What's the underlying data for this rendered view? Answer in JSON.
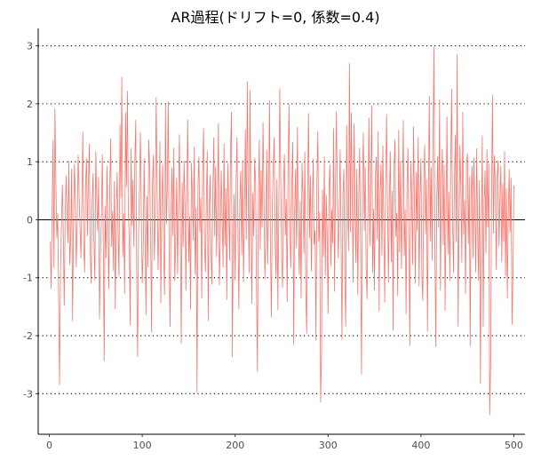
{
  "chart_data": {
    "type": "line",
    "title": "AR過程(ドリフト=0, 係数=0.4)",
    "xlabel": "",
    "ylabel": "",
    "xlim": [
      -12,
      512
    ],
    "ylim": [
      -3.7,
      3.3
    ],
    "x_ticks": [
      0,
      100,
      200,
      300,
      400,
      500
    ],
    "y_ticks": [
      -3,
      -2,
      -1,
      0,
      1,
      2,
      3
    ],
    "grid": "horizontal dotted at y ticks",
    "zero_line": true,
    "line_color": "#F8766D",
    "n_points": 500,
    "y_series": [
      -0.38,
      -1.19,
      0.2,
      1.37,
      -0.83,
      1.92,
      0.7,
      -0.31,
      0.11,
      -1.34,
      -2.85,
      -0.88,
      -0.12,
      0.61,
      -0.2,
      -1.48,
      -0.02,
      0.76,
      0.14,
      -0.4,
      1.02,
      -0.78,
      -0.33,
      0.88,
      -1.75,
      -0.1,
      0.96,
      0.35,
      -0.82,
      -0.03,
      1.12,
      0.47,
      -0.14,
      -0.66,
      0.31,
      1.52,
      -0.4,
      -0.91,
      0.59,
      1.06,
      -0.28,
      0.62,
      1.31,
      -0.52,
      -1.1,
      0.27,
      0.8,
      -0.36,
      -1.05,
      1.18,
      0.34,
      -0.2,
      0.74,
      -1.71,
      -0.59,
      -0.01,
      1.13,
      -0.31,
      -2.44,
      0.23,
      -0.66,
      0.93,
      -0.12,
      -1.2,
      0.51,
      1.4,
      -0.47,
      0.15,
      -0.88,
      0.67,
      -1.54,
      0.04,
      0.82,
      -0.25,
      -0.98,
      1.64,
      0.38,
      2.47,
      -0.64,
      0.11,
      -1.28,
      1.85,
      0.57,
      2.22,
      0.16,
      -0.33,
      -1.82,
      1.23,
      -0.1,
      0.69,
      -0.47,
      0.96,
      1.72,
      -0.88,
      -2.36,
      -0.24,
      0.52,
      1.51,
      0.08,
      -1.09,
      -0.54,
      1.06,
      -0.2,
      -1.65,
      0.41,
      -0.82,
      1.38,
      0.9,
      -0.32,
      -1.94,
      0.63,
      1.12,
      -0.7,
      0.05,
      2.11,
      0.48,
      -0.87,
      -0.12,
      1.35,
      -1.44,
      0.26,
      0.96,
      -0.5,
      -1.3,
      1.99,
      -0.08,
      0.57,
      2.04,
      -0.63,
      -1.85,
      0.17,
      0.9,
      -0.28,
      1.24,
      -1.06,
      -0.39,
      0.72,
      -0.94,
      0.35,
      1.47,
      -0.11,
      -2.14,
      0.64,
      -0.47,
      1.02,
      0.29,
      -1.22,
      0.52,
      1.73,
      -0.73,
      0.06,
      -1.55,
      0.98,
      0.43,
      -0.36,
      1.26,
      -0.95,
      0.21,
      -2.98,
      0.62,
      1.09,
      -0.21,
      0.38,
      -1.36,
      0.84,
      1.58,
      -0.44,
      -0.9,
      0.31,
      1.19,
      -1.74,
      0.14,
      0.77,
      -0.57,
      -1.12,
      0.49,
      1.42,
      -0.28,
      0.92,
      -0.64,
      0.23,
      1.67,
      -1.13,
      -0.36,
      0.85,
      0.12,
      -0.82,
      1.31,
      -0.45,
      0.54,
      -1.38,
      0.98,
      0.26,
      -0.7,
      1.16,
      1.86,
      -2.37,
      -0.29,
      0.44,
      -1.05,
      0.63,
      1.42,
      -0.16,
      -1.54,
      0.3,
      0.84,
      -0.61,
      1.03,
      -1.08,
      0.18,
      1.56,
      -0.34,
      2.39,
      0.57,
      -0.92,
      2.23,
      0.11,
      -1.45,
      0.46,
      -0.28,
      1.07,
      0.66,
      -1.19,
      -2.62,
      0.28,
      1.38,
      -0.52,
      0.85,
      -0.14,
      1.68,
      0.43,
      -1.03,
      -0.3,
      1.21,
      -0.76,
      0.35,
      2.06,
      -0.48,
      -1.68,
      0.24,
      0.92,
      1.43,
      -0.37,
      -0.98,
      0.7,
      -1.56,
      0.2,
      2.27,
      0.81,
      -0.64,
      -1.17,
      0.54,
      1.13,
      -0.27,
      0.36,
      -1.42,
      0.95,
      1.99,
      -0.21,
      -0.83,
      0.61,
      1.34,
      -2.16,
      0.1,
      0.88,
      -0.49,
      1.6,
      -0.15,
      -0.95,
      0.33,
      -1.36,
      0.98,
      0.42,
      -0.58,
      1.17,
      -1.21,
      -1.96,
      0.54,
      1.84,
      -0.32,
      0.76,
      -0.89,
      0.29,
      1.05,
      -0.43,
      -0.18,
      -2.08,
      0.68,
      1.52,
      -0.38,
      0.14,
      -3.15,
      -2.31,
      0.52,
      -0.64,
      1.09,
      -0.97,
      0.43,
      -0.2,
      -1.62,
      0.56,
      0.95,
      -0.8,
      0.18,
      -0.41,
      1.58,
      -1.24,
      0.69,
      1.87,
      0.32,
      -0.67,
      0.11,
      1.21,
      -0.38,
      -2.07,
      0.45,
      0.87,
      -0.96,
      -1.84,
      1.63,
      0.27,
      -0.54,
      2.7,
      -0.22,
      1.85,
      0.5,
      -1.08,
      1.66,
      0.14,
      -0.74,
      0.88,
      -1.3,
      0.36,
      1.24,
      -0.51,
      -2.67,
      0.63,
      1.51,
      -0.19,
      0.92,
      -0.83,
      -1.37,
      0.28,
      1.76,
      -0.45,
      0.67,
      1.97,
      -0.92,
      0.19,
      -1.22,
      0.77,
      1.09,
      -0.34,
      1.53,
      -1.58,
      0.42,
      0.96,
      -0.62,
      1.28,
      -0.08,
      -1.43,
      0.57,
      1.82,
      0.27,
      -1.08,
      0.36,
      1.18,
      -0.73,
      0.5,
      -1.91,
      0.84,
      1.38,
      -0.29,
      0.12,
      -1.32,
      1.55,
      -0.56,
      1.01,
      -0.85,
      0.31,
      1.72,
      -0.63,
      0.18,
      -1.63,
      0.6,
      1.24,
      -0.33,
      -2.17,
      0.98,
      0.45,
      -0.78,
      1.61,
      0.25,
      -1.1,
      0.82,
      -0.19,
      1.43,
      -1.15,
      0.39,
      1.06,
      -0.95,
      -1.4,
      0.66,
      1.29,
      -0.25,
      0.71,
      -1.93,
      0.41,
      2.14,
      -0.37,
      0.9,
      -0.71,
      1.35,
      2.98,
      -0.52,
      -2.19,
      0.34,
      1.1,
      -0.14,
      2.07,
      -1.22,
      0.62,
      1.22,
      -0.44,
      0.95,
      -1.57,
      0.13,
      1.78,
      -0.6,
      0.48,
      -1.06,
      0.84,
      2.26,
      0.01,
      -0.92,
      0.67,
      1.47,
      -0.39,
      2.86,
      -1.84,
      -0.1,
      1.29,
      0.55,
      -0.74,
      1.86,
      -0.26,
      0.34,
      -1.28,
      0.98,
      1.15,
      -0.42,
      0.75,
      -2.18,
      0.48,
      0.93,
      -0.66,
      1.07,
      0.21,
      -0.91,
      1.23,
      -0.17,
      -1.05,
      0.68,
      -2.83,
      -0.35,
      1.45,
      -1.85,
      0.3,
      0.85,
      -0.58,
      1.22,
      -0.13,
      0.97,
      -3.37,
      -2.5,
      0.51,
      2.15,
      -0.24,
      1.11,
      0.64,
      -0.86,
      0.74,
      1.02,
      -0.46,
      0.36,
      0.93,
      -0.73,
      0.62,
      -0.38,
      1.18,
      -0.97,
      0.54,
      -1.36,
      0.12,
      0.87,
      -0.21,
      0.72,
      -1.81,
      -1.0,
      0.59
    ]
  }
}
